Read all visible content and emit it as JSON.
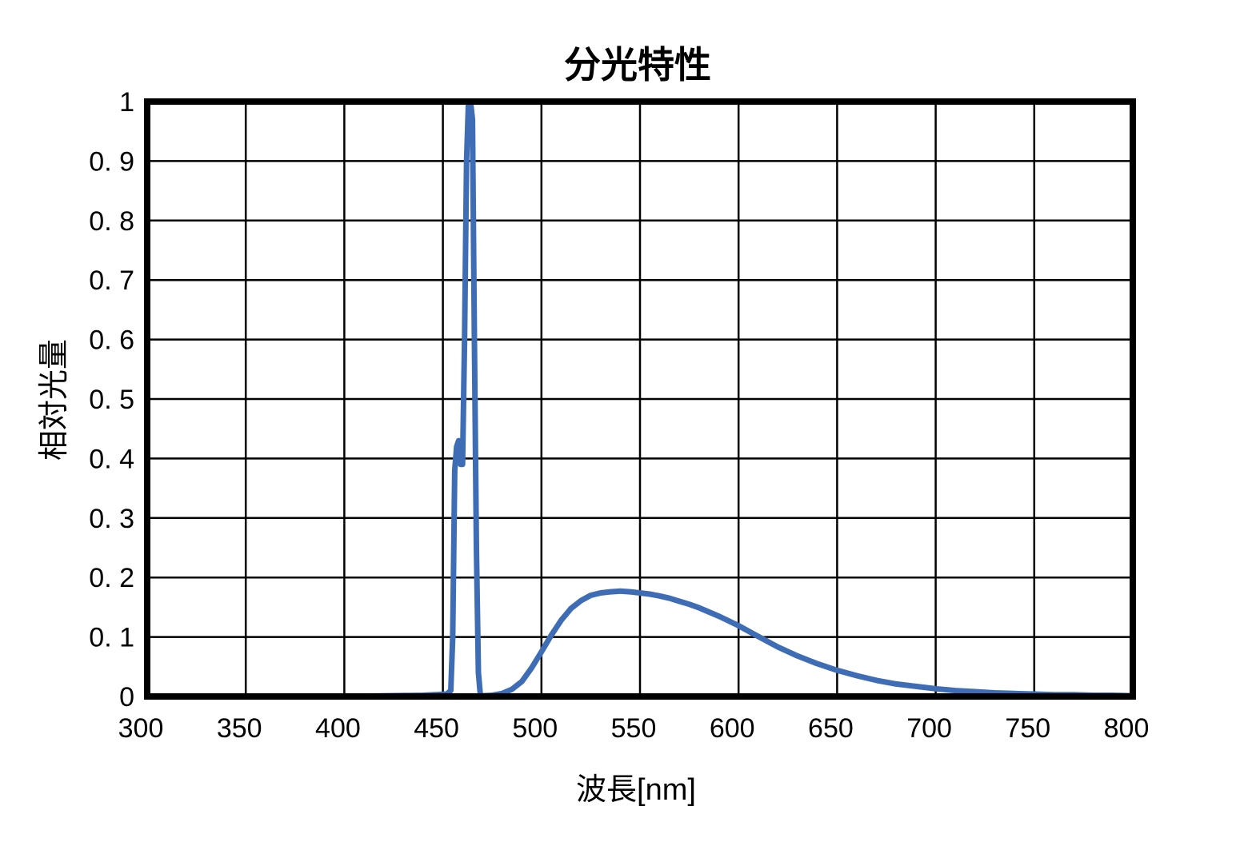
{
  "chart_data": {
    "type": "line",
    "title": "分光特性",
    "xlabel": "波長[nm]",
    "ylabel": "相対光量",
    "xlim": [
      300,
      800
    ],
    "ylim": [
      0,
      1
    ],
    "grid": true,
    "legend": null,
    "x_ticks": [
      300,
      350,
      400,
      450,
      500,
      550,
      600,
      650,
      700,
      750,
      800
    ],
    "x_tick_labels": [
      "300",
      "350",
      "400",
      "450",
      "500",
      "550",
      "600",
      "650",
      "700",
      "750",
      "800"
    ],
    "y_ticks": [
      0,
      0.1,
      0.2,
      0.3,
      0.4,
      0.5,
      0.6,
      0.7,
      0.8,
      0.9,
      1
    ],
    "y_tick_labels": [
      "0",
      "0. 1",
      "0. 2",
      "0. 3",
      "0. 4",
      "0. 5",
      "0. 6",
      "0. 7",
      "0. 8",
      "0. 9",
      "1"
    ],
    "series": [
      {
        "name": "相対光量",
        "color": "#3f6db5",
        "x": [
          300,
          350,
          400,
          440,
          452,
          454,
          455,
          456,
          457,
          458,
          459,
          460,
          461,
          462,
          463,
          464,
          465,
          466,
          467,
          468,
          469,
          470,
          475,
          480,
          485,
          490,
          495,
          500,
          505,
          510,
          515,
          520,
          525,
          530,
          535,
          540,
          545,
          550,
          555,
          560,
          565,
          570,
          575,
          580,
          585,
          590,
          595,
          600,
          610,
          620,
          630,
          640,
          650,
          660,
          670,
          680,
          690,
          700,
          710,
          720,
          730,
          740,
          750,
          760,
          770,
          780,
          790,
          800
        ],
        "values": [
          0,
          0,
          0,
          0.002,
          0.004,
          0.01,
          0.1,
          0.38,
          0.42,
          0.43,
          0.39,
          0.39,
          0.6,
          0.9,
          1.0,
          1.0,
          0.97,
          0.6,
          0.25,
          0.04,
          0.003,
          0.001,
          0.002,
          0.005,
          0.012,
          0.025,
          0.048,
          0.075,
          0.103,
          0.128,
          0.148,
          0.161,
          0.17,
          0.174,
          0.176,
          0.177,
          0.176,
          0.174,
          0.172,
          0.169,
          0.165,
          0.16,
          0.155,
          0.149,
          0.142,
          0.135,
          0.127,
          0.119,
          0.101,
          0.083,
          0.068,
          0.055,
          0.044,
          0.035,
          0.027,
          0.021,
          0.017,
          0.013,
          0.01,
          0.008,
          0.006,
          0.005,
          0.004,
          0.003,
          0.003,
          0.002,
          0.002,
          0.001
        ]
      }
    ]
  }
}
